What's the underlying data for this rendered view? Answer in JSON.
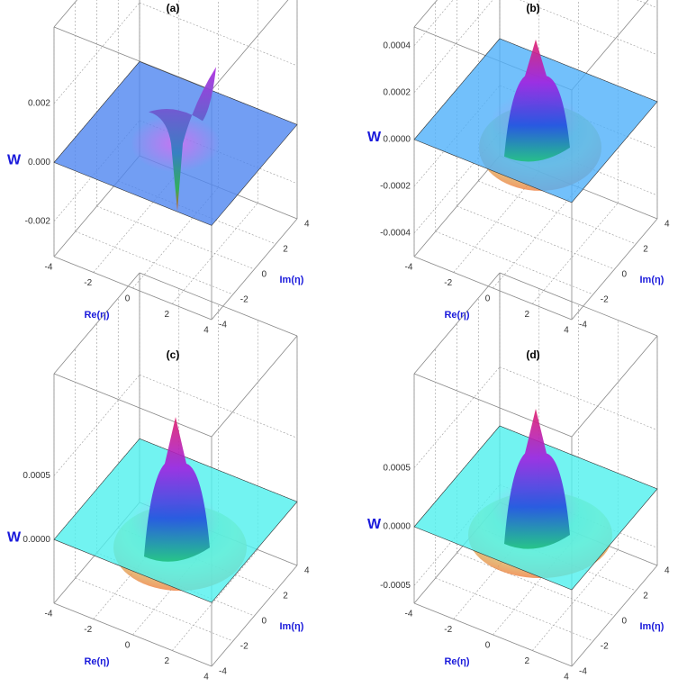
{
  "chart_data": [
    {
      "type": "surface3d",
      "title": "(a)",
      "zlabel": "W",
      "xlabel": "Re(η)",
      "ylabel": "Im(η)",
      "xlim": [
        -4,
        4
      ],
      "xticks": [
        -4,
        -2,
        0,
        2,
        4
      ],
      "ylim": [
        -4,
        4
      ],
      "yticks": [
        -4,
        -2,
        0,
        2,
        4
      ],
      "zlim": [
        -0.0032,
        0.0046
      ],
      "zticks": [
        -0.002,
        {
          "value": 0,
          "label": "0.000"
        },
        0.002
      ],
      "plane_color": "#4f86f0"
    },
    {
      "type": "surface3d",
      "title": "(b)",
      "zlabel": "W",
      "xlabel": "Re(η)",
      "ylabel": "Im(η)",
      "xlim": [
        -4,
        4
      ],
      "xticks": [
        -4,
        -2,
        0,
        2,
        4
      ],
      "ylim": [
        -4,
        4
      ],
      "yticks": [
        -4,
        -2,
        0,
        2,
        4
      ],
      "zlim": [
        -0.0005,
        0.00048
      ],
      "zticks": [
        -0.0004,
        -0.0002,
        {
          "value": 0,
          "label": "0.0000"
        },
        0.0002,
        0.0004
      ],
      "plane_color": "#4fb0fa"
    },
    {
      "type": "surface3d",
      "title": "(c)",
      "zlabel": "W",
      "xlabel": "Re(η)",
      "ylabel": "Im(η)",
      "xlim": [
        -4,
        4
      ],
      "xticks": [
        -4,
        -2,
        0,
        2,
        4
      ],
      "ylim": [
        -4,
        4
      ],
      "yticks": [
        -4,
        -2,
        0,
        2,
        4
      ],
      "zlim": [
        -0.0005,
        0.0013
      ],
      "zticks": [
        {
          "value": 0,
          "label": "0.0000"
        },
        0.0005
      ],
      "plane_color": "#4ff0ee"
    },
    {
      "type": "surface3d",
      "title": "(d)",
      "zlabel": "W",
      "xlabel": "Re(η)",
      "ylabel": "Im(η)",
      "xlim": [
        -4,
        4
      ],
      "xticks": [
        -4,
        -2,
        0,
        2,
        4
      ],
      "ylim": [
        -4,
        4
      ],
      "yticks": [
        -4,
        -2,
        0,
        2,
        4
      ],
      "zlim": [
        -0.00065,
        0.0013
      ],
      "zticks": [
        -0.0005,
        {
          "value": 0,
          "label": "0.0000"
        },
        0.0005
      ],
      "plane_color": "#4ff0ee"
    }
  ]
}
